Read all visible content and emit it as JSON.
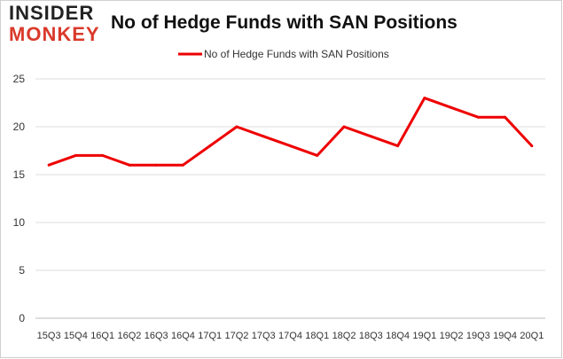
{
  "logo": {
    "line1": "INSIDER",
    "line2": "MONKEY"
  },
  "chart_data": {
    "type": "line",
    "title": "No of Hedge Funds with SAN Positions",
    "categories": [
      "15Q3",
      "15Q4",
      "16Q1",
      "16Q2",
      "16Q3",
      "16Q4",
      "17Q1",
      "17Q2",
      "17Q3",
      "17Q4",
      "18Q1",
      "18Q2",
      "18Q3",
      "18Q4",
      "19Q1",
      "19Q2",
      "19Q3",
      "19Q4",
      "20Q1"
    ],
    "series": [
      {
        "name": "No of Hedge Funds with SAN Positions",
        "values": [
          16,
          17,
          17,
          16,
          16,
          16,
          18,
          20,
          19,
          18,
          17,
          20,
          19,
          18,
          23,
          22,
          21,
          21,
          18
        ],
        "color": "#ee0000"
      }
    ],
    "ylim": [
      0,
      25
    ],
    "yticks": [
      0,
      5,
      10,
      15,
      20,
      25
    ],
    "grid": true,
    "legend": "top-center"
  }
}
